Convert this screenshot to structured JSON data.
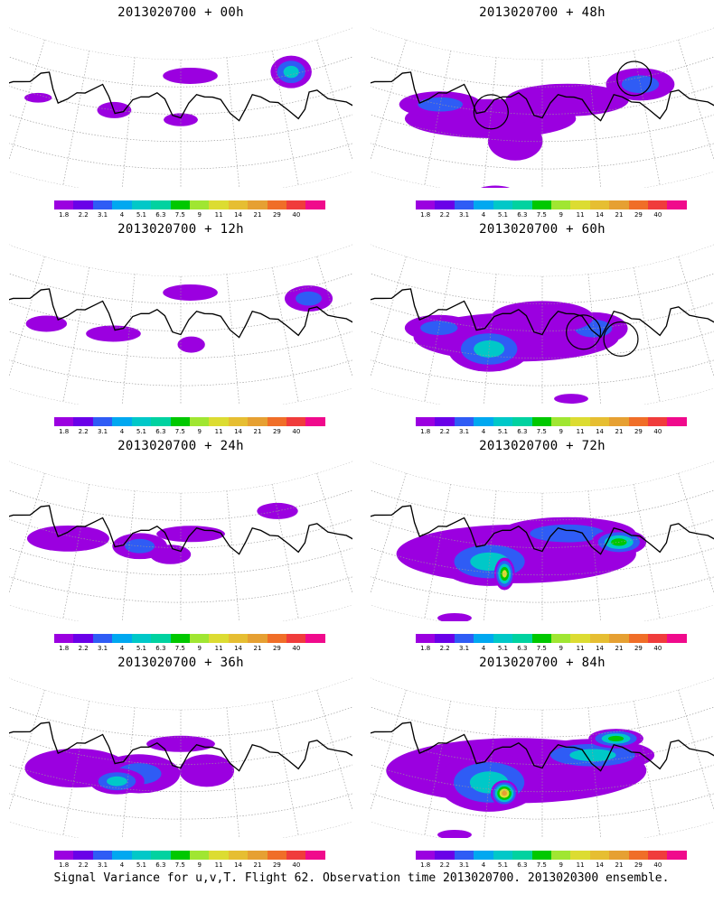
{
  "panels": [
    {
      "title": "2013020700 + 00h",
      "blobs": [
        [
          0.22,
          0.42,
          0.04,
          0.03,
          0
        ],
        [
          0.37,
          0.4,
          0.05,
          0.05,
          0
        ],
        [
          0.5,
          0.44,
          0.05,
          0.04,
          0
        ],
        [
          0.73,
          0.18,
          0.06,
          0.1,
          2
        ],
        [
          0.52,
          0.12,
          0.08,
          0.05,
          0
        ]
      ],
      "rings": []
    },
    {
      "title": "2013020700 + 48h",
      "blobs": [
        [
          0.4,
          0.45,
          0.25,
          0.12,
          0
        ],
        [
          0.3,
          0.4,
          0.12,
          0.08,
          1
        ],
        [
          0.55,
          0.3,
          0.18,
          0.1,
          0
        ],
        [
          0.7,
          0.25,
          0.1,
          0.1,
          1
        ],
        [
          0.45,
          0.6,
          0.08,
          0.12,
          0
        ],
        [
          0.42,
          0.97,
          0.05,
          0.03,
          0
        ]
      ],
      "rings": [
        [
          0.4,
          0.4,
          0.05
        ],
        [
          0.69,
          0.2,
          0.05
        ]
      ]
    },
    {
      "title": "2013020700 + 12h",
      "blobs": [
        [
          0.24,
          0.47,
          0.06,
          0.05,
          0
        ],
        [
          0.37,
          0.45,
          0.08,
          0.05,
          0
        ],
        [
          0.52,
          0.5,
          0.04,
          0.05,
          0
        ],
        [
          0.76,
          0.28,
          0.07,
          0.08,
          1
        ],
        [
          0.52,
          0.12,
          0.08,
          0.05,
          0
        ]
      ],
      "rings": []
    },
    {
      "title": "2013020700 + 60h",
      "blobs": [
        [
          0.45,
          0.45,
          0.3,
          0.15,
          0
        ],
        [
          0.4,
          0.55,
          0.12,
          0.14,
          2
        ],
        [
          0.3,
          0.45,
          0.1,
          0.08,
          1
        ],
        [
          0.6,
          0.4,
          0.1,
          0.1,
          1
        ],
        [
          0.5,
          0.3,
          0.15,
          0.1,
          0
        ],
        [
          0.55,
          0.9,
          0.05,
          0.03,
          0
        ]
      ],
      "rings": [
        [
          0.58,
          0.42,
          0.05
        ],
        [
          0.65,
          0.5,
          0.05
        ]
      ]
    },
    {
      "title": "2013020700 + 24h",
      "blobs": [
        [
          0.28,
          0.42,
          0.12,
          0.08,
          0
        ],
        [
          0.42,
          0.4,
          0.08,
          0.08,
          1
        ],
        [
          0.48,
          0.45,
          0.06,
          0.06,
          0
        ],
        [
          0.52,
          0.3,
          0.1,
          0.05,
          0
        ],
        [
          0.7,
          0.2,
          0.06,
          0.05,
          0
        ]
      ],
      "rings": []
    },
    {
      "title": "2013020700 + 72h",
      "blobs": [
        [
          0.45,
          0.45,
          0.35,
          0.18,
          0
        ],
        [
          0.4,
          0.52,
          0.15,
          0.15,
          2
        ],
        [
          0.43,
          0.6,
          0.03,
          0.1,
          4
        ],
        [
          0.55,
          0.3,
          0.2,
          0.1,
          1
        ],
        [
          0.65,
          0.4,
          0.08,
          0.08,
          3
        ],
        [
          0.35,
          0.96,
          0.05,
          0.03,
          0
        ]
      ],
      "rings": []
    },
    {
      "title": "2013020700 + 36h",
      "blobs": [
        [
          0.3,
          0.5,
          0.15,
          0.12,
          0
        ],
        [
          0.42,
          0.48,
          0.12,
          0.12,
          1
        ],
        [
          0.38,
          0.55,
          0.08,
          0.08,
          2
        ],
        [
          0.55,
          0.45,
          0.08,
          0.1,
          0
        ],
        [
          0.5,
          0.25,
          0.1,
          0.05,
          0
        ]
      ],
      "rings": []
    },
    {
      "title": "2013020700 + 84h",
      "blobs": [
        [
          0.45,
          0.45,
          0.38,
          0.2,
          0
        ],
        [
          0.4,
          0.55,
          0.15,
          0.18,
          2
        ],
        [
          0.43,
          0.62,
          0.04,
          0.08,
          5
        ],
        [
          0.6,
          0.35,
          0.18,
          0.1,
          2
        ],
        [
          0.65,
          0.25,
          0.08,
          0.06,
          3
        ],
        [
          0.35,
          0.96,
          0.05,
          0.03,
          0
        ]
      ],
      "rings": []
    }
  ],
  "colorbar": {
    "colors": [
      "#9b00e0",
      "#6a00e8",
      "#2f5cf5",
      "#00a8f0",
      "#00c8c8",
      "#00d2a0",
      "#00c800",
      "#a0e632",
      "#dcdc32",
      "#e6be32",
      "#e6a032",
      "#f06e28",
      "#f03c3c",
      "#f00a8c"
    ],
    "ticks": [
      "1.8",
      "2.2",
      "3.1",
      "4",
      "5.1",
      "6.3",
      "7.5",
      "9",
      "11",
      "14",
      "21",
      "29",
      "40"
    ]
  },
  "footer": "Signal Variance for u,v,T. Flight 62. Observation time 2013020700. 2013020300 ensemble."
}
